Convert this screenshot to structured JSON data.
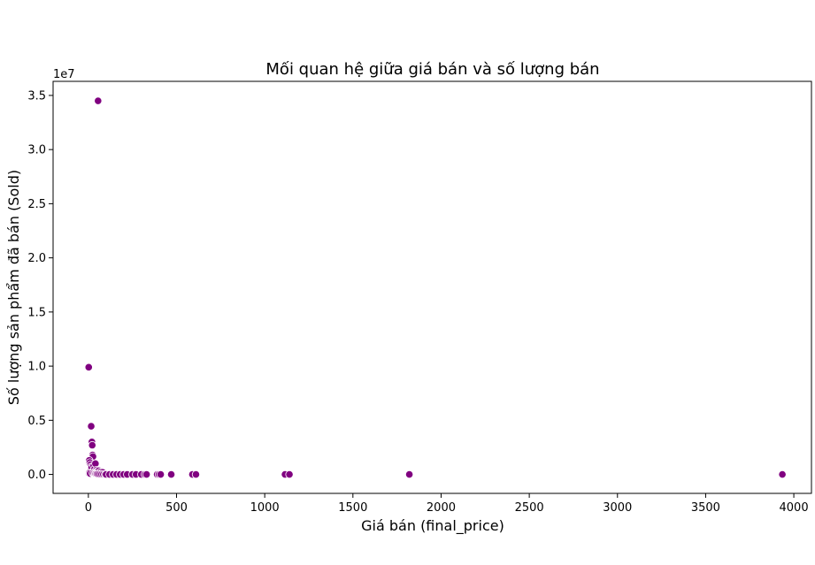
{
  "chart_data": {
    "type": "scatter",
    "title": "Mối quan hệ giữa giá bán và số lượng bán",
    "xlabel": "Giá bán (final_price)",
    "ylabel": "Số lượng sản phẩm đã bán (Sold)",
    "y_scale_label": "1e7",
    "xlim": [
      -200,
      4100
    ],
    "ylim": [
      -1750000,
      36300000
    ],
    "x_ticks": [
      0,
      500,
      1000,
      1500,
      2000,
      2500,
      3000,
      3500,
      4000
    ],
    "x_tick_labels": [
      "0",
      "500",
      "1000",
      "1500",
      "2000",
      "2500",
      "3000",
      "3500",
      "4000"
    ],
    "y_ticks": [
      0,
      5000000,
      10000000,
      15000000,
      20000000,
      25000000,
      30000000,
      35000000
    ],
    "y_tick_labels": [
      "0.0",
      "0.5",
      "1.0",
      "1.5",
      "2.0",
      "2.5",
      "3.0",
      "3.5"
    ],
    "grid": false,
    "marker_color": "#800080",
    "marker_edge_color": "#ffffff",
    "series": [
      {
        "x": [
          55,
          2,
          16,
          20,
          22,
          24,
          26,
          28,
          5,
          8,
          12,
          15,
          18,
          30,
          35,
          40,
          45,
          50,
          60,
          70,
          80,
          3,
          6,
          10,
          25,
          32,
          38,
          42,
          48,
          55,
          65,
          75,
          85,
          95,
          100,
          120,
          140,
          160,
          180,
          200,
          220,
          250,
          270,
          300,
          320,
          330,
          390,
          400,
          410,
          470,
          590,
          610,
          1115,
          1140,
          1820,
          3935
        ],
        "y": [
          34500000,
          9900000,
          4450000,
          3000000,
          2700000,
          1800000,
          1650000,
          1000000,
          1300000,
          1100000,
          900000,
          700000,
          600000,
          800000,
          500000,
          1000000,
          400000,
          300000,
          350000,
          250000,
          200000,
          100000,
          150000,
          80000,
          120000,
          90000,
          60000,
          50000,
          40000,
          30000,
          20000,
          15000,
          10000,
          8000,
          5000,
          4000,
          3000,
          2500,
          2000,
          1500,
          1200,
          1000,
          900,
          800,
          700,
          600,
          500,
          400,
          300,
          200,
          150,
          100,
          80,
          60,
          40,
          20
        ]
      }
    ]
  }
}
